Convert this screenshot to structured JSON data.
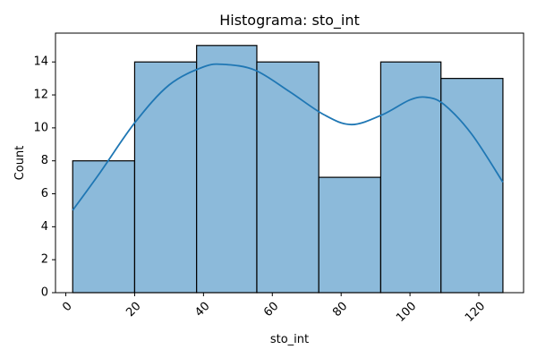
{
  "chart_data": {
    "type": "histogram",
    "title": "Histograma: sto_int",
    "xlabel": "sto_int",
    "ylabel": "Count",
    "xlim": [
      -3,
      133
    ],
    "ylim": [
      0,
      15.75
    ],
    "x_ticks": [
      0,
      20,
      40,
      60,
      80,
      100,
      120
    ],
    "y_ticks": [
      0,
      2,
      4,
      6,
      8,
      10,
      12,
      14
    ],
    "bins": [
      {
        "start": 2,
        "end": 20,
        "count": 8
      },
      {
        "start": 20,
        "end": 38,
        "count": 14
      },
      {
        "start": 38,
        "end": 55.5,
        "count": 15
      },
      {
        "start": 55.5,
        "end": 73.5,
        "count": 14
      },
      {
        "start": 73.5,
        "end": 91.5,
        "count": 7
      },
      {
        "start": 91.5,
        "end": 109,
        "count": 14
      },
      {
        "start": 109,
        "end": 127,
        "count": 13
      }
    ],
    "kde": {
      "x": [
        2,
        10,
        20,
        30,
        40,
        46,
        55,
        65,
        75,
        83,
        92,
        100,
        105,
        110,
        118,
        127
      ],
      "y": [
        5,
        7.3,
        10.3,
        12.6,
        13.7,
        13.85,
        13.5,
        12.2,
        10.8,
        10.2,
        10.8,
        11.7,
        11.85,
        11.4,
        9.6,
        6.7
      ]
    },
    "colors": {
      "bar_fill": "#8cbada",
      "bar_edge": "#000000",
      "kde_line": "#1f77b4"
    },
    "grid": false,
    "legend": "none"
  }
}
